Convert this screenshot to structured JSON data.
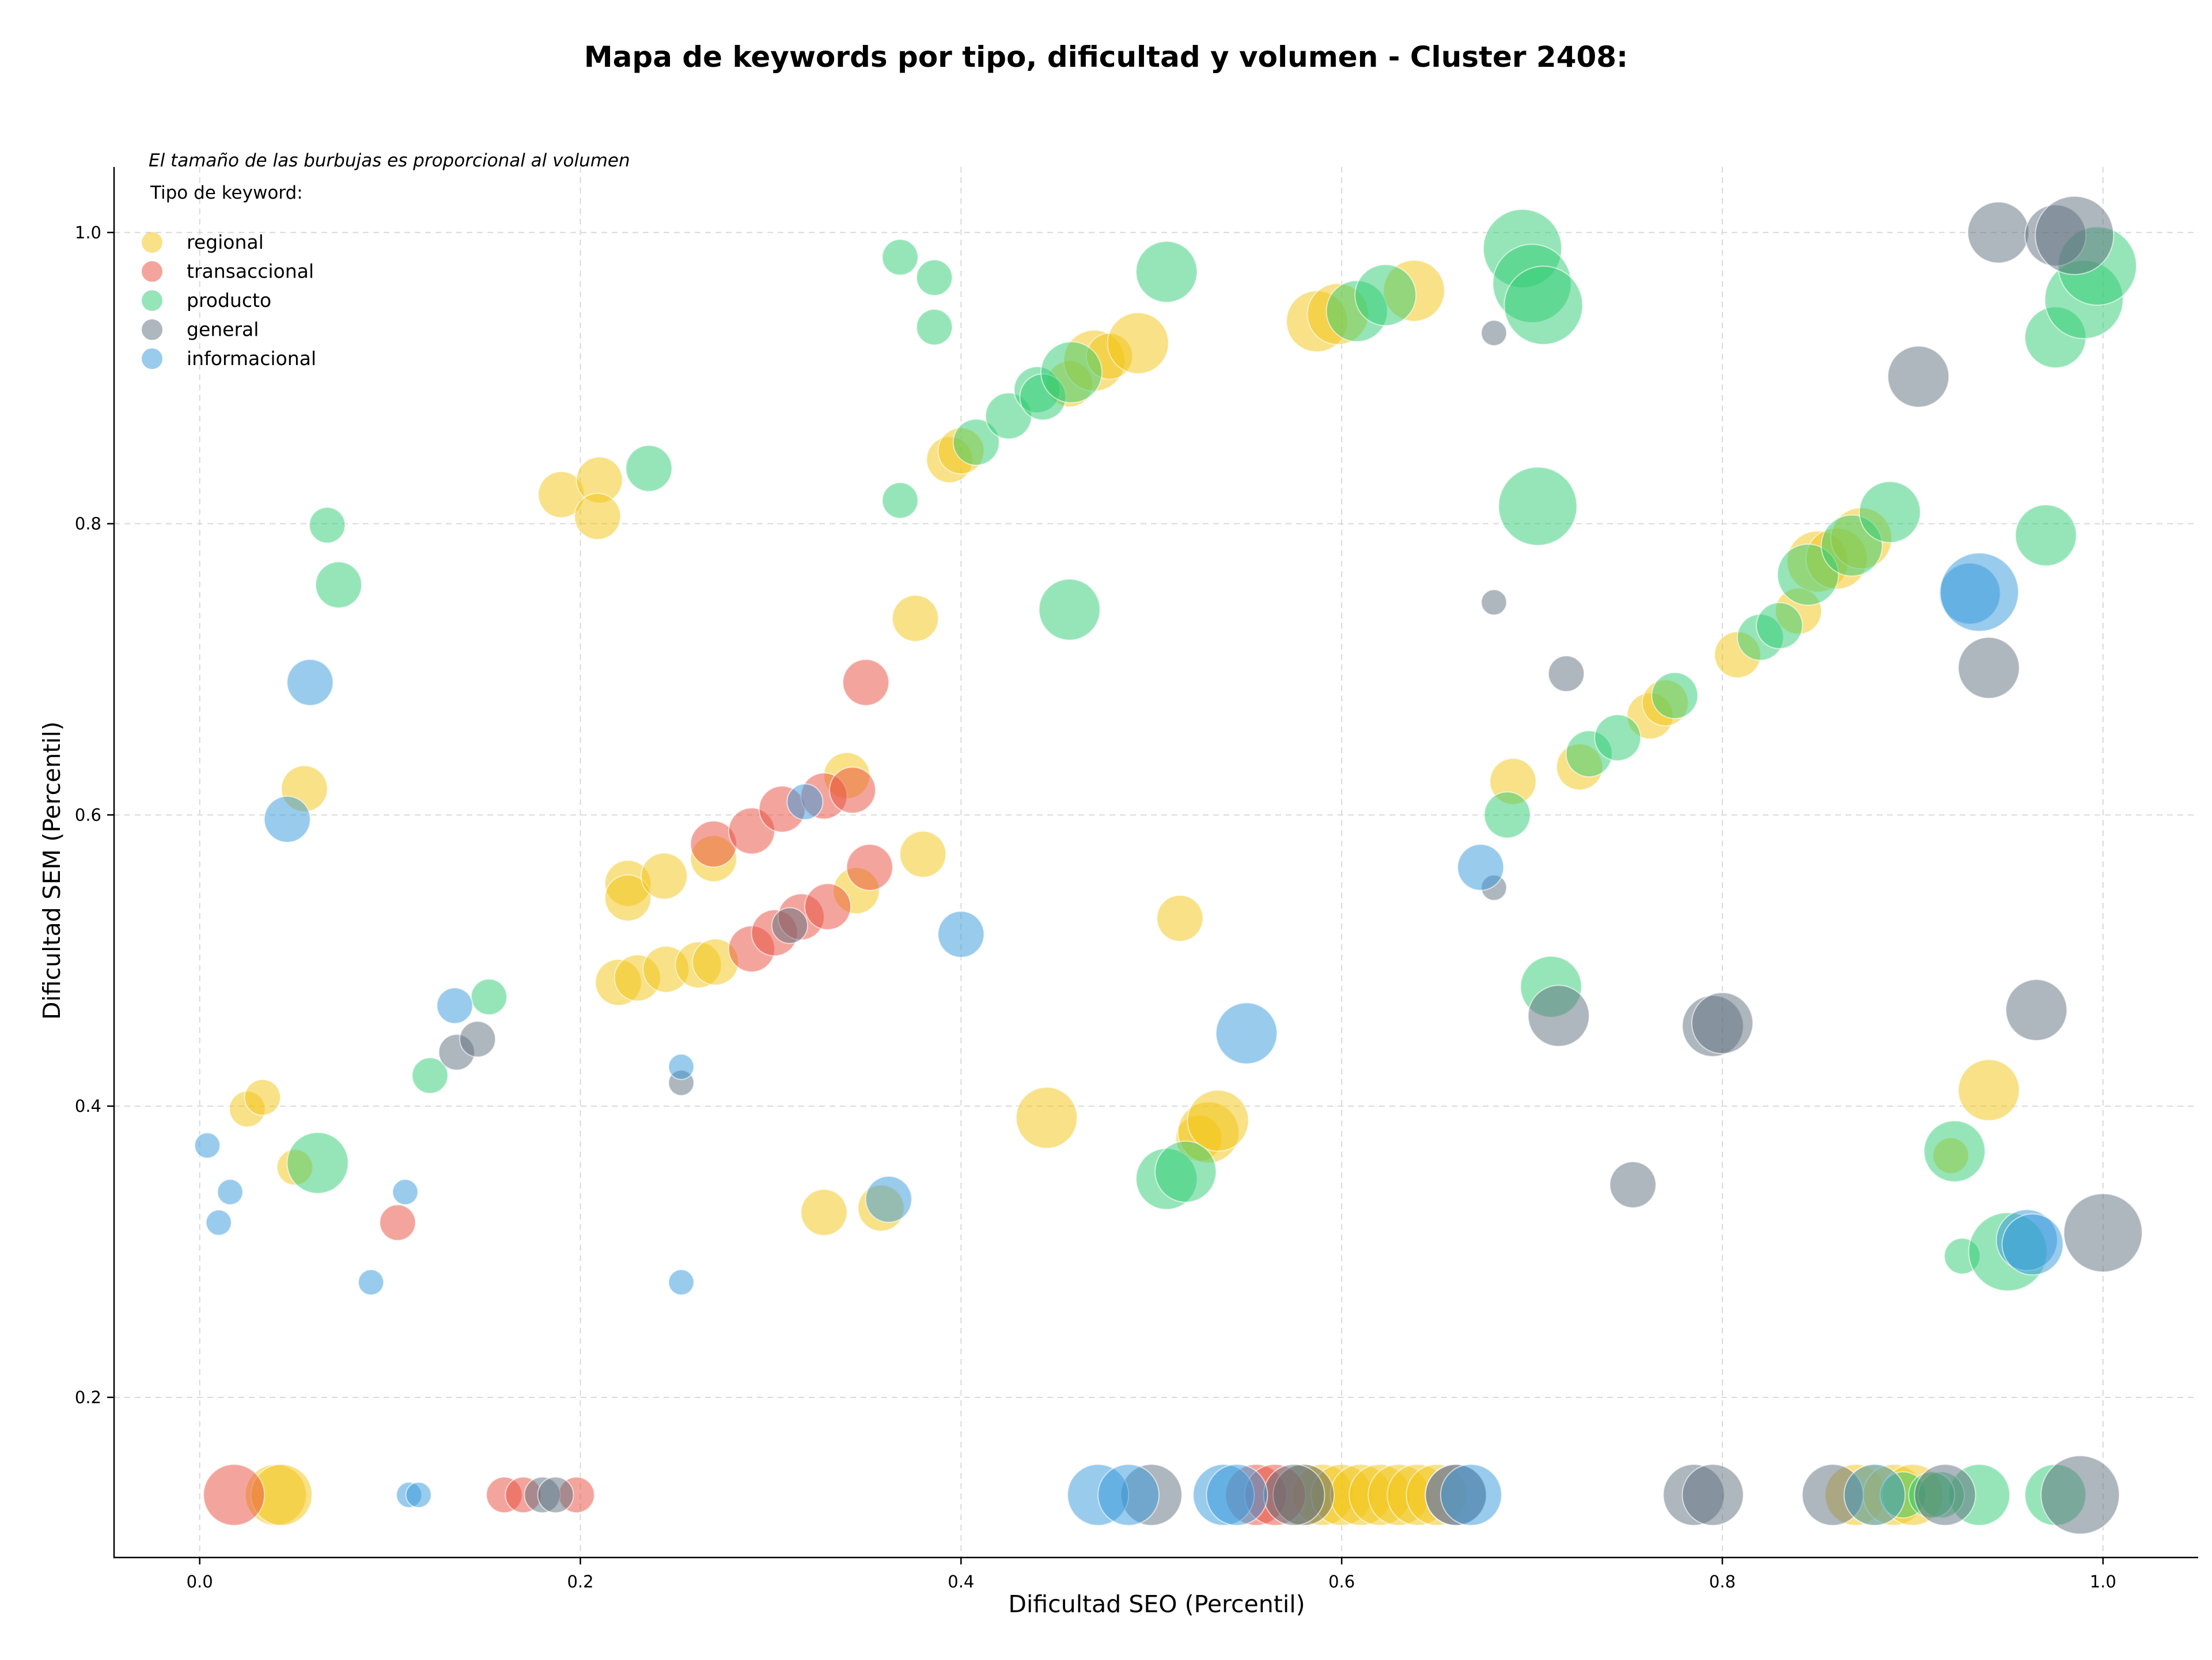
{
  "chart_data": {
    "type": "scatter",
    "title": "Mapa de keywords por tipo, dificultad y volumen - Cluster 2408:",
    "xlabel": "Dificultad SEO (Percentil)",
    "ylabel": "Dificultad SEM (Percentil)",
    "xlim": [
      -0.045,
      1.05
    ],
    "ylim": [
      0.09,
      1.045
    ],
    "xticks": [
      0.0,
      0.2,
      0.4,
      0.6,
      0.8,
      1.0
    ],
    "yticks": [
      0.2,
      0.4,
      0.6,
      0.8,
      1.0
    ],
    "xtick_labels": [
      "0.0",
      "0.2",
      "0.4",
      "0.6",
      "0.8",
      "1.0"
    ],
    "ytick_labels": [
      "0.2",
      "0.4",
      "0.6",
      "0.8",
      "1.0"
    ],
    "grid": true,
    "legend": {
      "placement": "top-left",
      "note": "El tamaño de las burbujas es proporcional al volumen",
      "title": "Tipo de keyword:"
    },
    "series": [
      {
        "name": "regional",
        "color": "#f1c40f",
        "points": [
          [
            0.19,
            0.82,
            3
          ],
          [
            0.21,
            0.83,
            3
          ],
          [
            0.209,
            0.805,
            3
          ],
          [
            0.055,
            0.618,
            3
          ],
          [
            0.025,
            0.398,
            2
          ],
          [
            0.033,
            0.406,
            2
          ],
          [
            0.05,
            0.358,
            2
          ],
          [
            0.04,
            0.133,
            4
          ],
          [
            0.043,
            0.133,
            4
          ],
          [
            0.225,
            0.553,
            3
          ],
          [
            0.225,
            0.543,
            3
          ],
          [
            0.244,
            0.558,
            3
          ],
          [
            0.22,
            0.485,
            3
          ],
          [
            0.23,
            0.488,
            3
          ],
          [
            0.245,
            0.494,
            3
          ],
          [
            0.262,
            0.497,
            3
          ],
          [
            0.271,
            0.499,
            3
          ],
          [
            0.27,
            0.57,
            3
          ],
          [
            0.34,
            0.627,
            3
          ],
          [
            0.345,
            0.548,
            3
          ],
          [
            0.38,
            0.573,
            3
          ],
          [
            0.376,
            0.735,
            3
          ],
          [
            0.328,
            0.327,
            3
          ],
          [
            0.358,
            0.33,
            3
          ],
          [
            0.394,
            0.844,
            3
          ],
          [
            0.4,
            0.85,
            3
          ],
          [
            0.457,
            0.896,
            3
          ],
          [
            0.47,
            0.912,
            4
          ],
          [
            0.478,
            0.915,
            3
          ],
          [
            0.493,
            0.924,
            4
          ],
          [
            0.445,
            0.392,
            4
          ],
          [
            0.515,
            0.529,
            3
          ],
          [
            0.525,
            0.378,
            3
          ],
          [
            0.53,
            0.382,
            4
          ],
          [
            0.535,
            0.39,
            4
          ],
          [
            0.587,
            0.939,
            4
          ],
          [
            0.598,
            0.944,
            4
          ],
          [
            0.638,
            0.96,
            4
          ],
          [
            0.69,
            0.623,
            3
          ],
          [
            0.725,
            0.633,
            3
          ],
          [
            0.762,
            0.668,
            3
          ],
          [
            0.77,
            0.677,
            3
          ],
          [
            0.808,
            0.71,
            3
          ],
          [
            0.84,
            0.74,
            3
          ],
          [
            0.85,
            0.774,
            4
          ],
          [
            0.86,
            0.776,
            4
          ],
          [
            0.873,
            0.79,
            4
          ],
          [
            0.94,
            0.411,
            4
          ],
          [
            0.92,
            0.366,
            2
          ],
          [
            0.58,
            0.133,
            4
          ],
          [
            0.59,
            0.133,
            4
          ],
          [
            0.6,
            0.133,
            4
          ],
          [
            0.61,
            0.133,
            4
          ],
          [
            0.62,
            0.133,
            4
          ],
          [
            0.63,
            0.133,
            4
          ],
          [
            0.64,
            0.133,
            4
          ],
          [
            0.65,
            0.133,
            4
          ],
          [
            0.66,
            0.133,
            4
          ],
          [
            0.87,
            0.133,
            4
          ],
          [
            0.88,
            0.133,
            4
          ],
          [
            0.89,
            0.133,
            4
          ],
          [
            0.9,
            0.133,
            4
          ]
        ]
      },
      {
        "name": "transaccional",
        "color": "#e74c3c",
        "points": [
          [
            0.018,
            0.133,
            4
          ],
          [
            0.104,
            0.32,
            2
          ],
          [
            0.16,
            0.133,
            2
          ],
          [
            0.17,
            0.133,
            2
          ],
          [
            0.198,
            0.133,
            2
          ],
          [
            0.27,
            0.58,
            3
          ],
          [
            0.29,
            0.589,
            3
          ],
          [
            0.29,
            0.508,
            3
          ],
          [
            0.306,
            0.604,
            3
          ],
          [
            0.302,
            0.519,
            3
          ],
          [
            0.316,
            0.53,
            3
          ],
          [
            0.328,
            0.613,
            3
          ],
          [
            0.33,
            0.537,
            3
          ],
          [
            0.343,
            0.617,
            3
          ],
          [
            0.352,
            0.564,
            3
          ],
          [
            0.35,
            0.691,
            3
          ],
          [
            0.555,
            0.133,
            4
          ],
          [
            0.565,
            0.133,
            4
          ],
          [
            0.66,
            0.133,
            4
          ]
        ]
      },
      {
        "name": "producto",
        "color": "#2ecc71",
        "points": [
          [
            0.067,
            0.799,
            2
          ],
          [
            0.073,
            0.758,
            3
          ],
          [
            0.062,
            0.361,
            4
          ],
          [
            0.121,
            0.421,
            2
          ],
          [
            0.152,
            0.475,
            2
          ],
          [
            0.236,
            0.838,
            3
          ],
          [
            0.368,
            0.983,
            2
          ],
          [
            0.386,
            0.969,
            2
          ],
          [
            0.386,
            0.935,
            2
          ],
          [
            0.368,
            0.816,
            2
          ],
          [
            0.408,
            0.856,
            3
          ],
          [
            0.425,
            0.874,
            3
          ],
          [
            0.44,
            0.892,
            3
          ],
          [
            0.443,
            0.887,
            3
          ],
          [
            0.458,
            0.904,
            4
          ],
          [
            0.457,
            0.741,
            4
          ],
          [
            0.508,
            0.973,
            4
          ],
          [
            0.508,
            0.35,
            4
          ],
          [
            0.518,
            0.355,
            4
          ],
          [
            0.608,
            0.946,
            4
          ],
          [
            0.623,
            0.957,
            4
          ],
          [
            0.695,
            0.989,
            5
          ],
          [
            0.7,
            0.965,
            5
          ],
          [
            0.706,
            0.95,
            5
          ],
          [
            0.703,
            0.812,
            5
          ],
          [
            0.687,
            0.6,
            3
          ],
          [
            0.71,
            0.482,
            4
          ],
          [
            0.73,
            0.642,
            3
          ],
          [
            0.745,
            0.653,
            3
          ],
          [
            0.775,
            0.682,
            3
          ],
          [
            0.82,
            0.722,
            3
          ],
          [
            0.83,
            0.73,
            3
          ],
          [
            0.845,
            0.765,
            4
          ],
          [
            0.868,
            0.785,
            4
          ],
          [
            0.888,
            0.808,
            4
          ],
          [
            0.97,
            0.792,
            4
          ],
          [
            0.975,
            0.928,
            4
          ],
          [
            0.99,
            0.954,
            5
          ],
          [
            0.997,
            0.977,
            5
          ],
          [
            0.922,
            0.369,
            4
          ],
          [
            0.926,
            0.297,
            2
          ],
          [
            0.95,
            0.3,
            5
          ],
          [
            0.935,
            0.133,
            4
          ],
          [
            0.975,
            0.133,
            4
          ],
          [
            0.895,
            0.133,
            3
          ],
          [
            0.915,
            0.133,
            3
          ],
          [
            0.91,
            0.133,
            3
          ]
        ]
      },
      {
        "name": "general",
        "color": "#5d6d7e",
        "points": [
          [
            0.135,
            0.437,
            2
          ],
          [
            0.146,
            0.446,
            2
          ],
          [
            0.253,
            0.416,
            1
          ],
          [
            0.31,
            0.524,
            2
          ],
          [
            0.18,
            0.133,
            2
          ],
          [
            0.187,
            0.133,
            2
          ],
          [
            0.5,
            0.133,
            4
          ],
          [
            0.58,
            0.133,
            4
          ],
          [
            0.575,
            0.133,
            4
          ],
          [
            0.68,
            0.931,
            1
          ],
          [
            0.68,
            0.746,
            1
          ],
          [
            0.68,
            0.55,
            1
          ],
          [
            0.718,
            0.697,
            2
          ],
          [
            0.714,
            0.462,
            4
          ],
          [
            0.753,
            0.346,
            3
          ],
          [
            0.795,
            0.455,
            4
          ],
          [
            0.8,
            0.457,
            4
          ],
          [
            0.785,
            0.133,
            4
          ],
          [
            0.795,
            0.133,
            4
          ],
          [
            0.858,
            0.133,
            4
          ],
          [
            0.917,
            0.133,
            4
          ],
          [
            0.903,
            0.901,
            4
          ],
          [
            0.945,
            1.0,
            4
          ],
          [
            0.94,
            0.701,
            4
          ],
          [
            0.965,
            0.466,
            4
          ],
          [
            0.975,
            0.998,
            4
          ],
          [
            0.985,
            0.998,
            5
          ],
          [
            1.0,
            0.313,
            5
          ],
          [
            0.988,
            0.133,
            5
          ]
        ]
      },
      {
        "name": "informacional",
        "color": "#3498db",
        "points": [
          [
            0.004,
            0.373,
            1
          ],
          [
            0.016,
            0.341,
            1
          ],
          [
            0.01,
            0.32,
            1
          ],
          [
            0.058,
            0.691,
            3
          ],
          [
            0.046,
            0.597,
            3
          ],
          [
            0.09,
            0.279,
            1
          ],
          [
            0.108,
            0.341,
            1
          ],
          [
            0.11,
            0.133,
            1
          ],
          [
            0.115,
            0.133,
            1
          ],
          [
            0.134,
            0.469,
            2
          ],
          [
            0.253,
            0.427,
            1
          ],
          [
            0.253,
            0.279,
            1
          ],
          [
            0.318,
            0.609,
            2
          ],
          [
            0.362,
            0.336,
            3
          ],
          [
            0.4,
            0.518,
            3
          ],
          [
            0.55,
            0.45,
            4
          ],
          [
            0.673,
            0.564,
            3
          ],
          [
            0.472,
            0.133,
            4
          ],
          [
            0.488,
            0.133,
            4
          ],
          [
            0.538,
            0.133,
            4
          ],
          [
            0.545,
            0.133,
            4
          ],
          [
            0.66,
            0.133,
            4
          ],
          [
            0.668,
            0.133,
            4
          ],
          [
            0.88,
            0.133,
            4
          ],
          [
            0.93,
            0.752,
            4
          ],
          [
            0.935,
            0.753,
            5
          ],
          [
            0.96,
            0.308,
            4
          ],
          [
            0.963,
            0.305,
            4
          ]
        ]
      }
    ]
  }
}
